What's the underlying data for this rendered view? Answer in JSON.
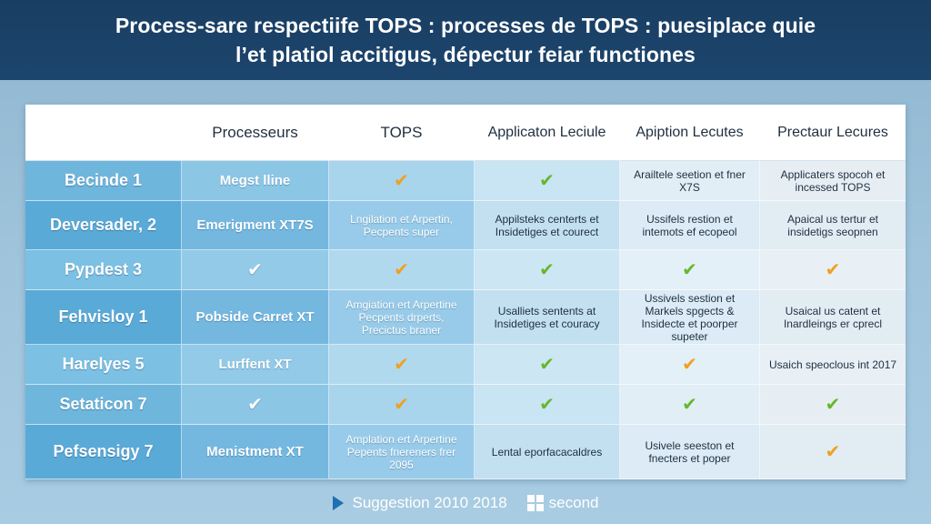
{
  "title": {
    "line1": "Process-sare respectiife TOPS : processes de TOPS : puesiplace quie",
    "line2": "l’et platiol accitigus, dépectur feiar functiones"
  },
  "colors": {
    "banner": "#1c456d",
    "check_orange": "#f0a020",
    "check_green": "#66b82c",
    "label_blue": "#6cb5dc"
  },
  "table": {
    "headers": [
      "",
      "Processeurs",
      "TOPS",
      "Applicaton Leciule",
      "Apiption Lecutes",
      "Prectaur Lecures"
    ],
    "rows": [
      {
        "label": "Becinde 1",
        "cells": [
          {
            "type": "bold",
            "text": "Megst lline"
          },
          {
            "type": "check",
            "color": "orange"
          },
          {
            "type": "check",
            "color": "green"
          },
          {
            "type": "text",
            "text": "Arailtele seetion et fner X7S"
          },
          {
            "type": "text",
            "text": "Applicaters spocoh et incessed TOPS"
          }
        ]
      },
      {
        "label": "Deversader, 2",
        "cells": [
          {
            "type": "bold",
            "text": "Emerigment XT7S"
          },
          {
            "type": "text",
            "text": "Lngilation et Arpertin, Pecpents super"
          },
          {
            "type": "text",
            "text": "Appilsteks centerts et Insidetiges et courect"
          },
          {
            "type": "text",
            "text": "Ussifels restion et intemots ef ecopeol"
          },
          {
            "type": "text",
            "text": "Apaical us tertur et insidetigs seopnen"
          }
        ]
      },
      {
        "label": "Pypdest 3",
        "cells": [
          {
            "type": "check",
            "color": "white"
          },
          {
            "type": "check",
            "color": "orange"
          },
          {
            "type": "check",
            "color": "green"
          },
          {
            "type": "check",
            "color": "green"
          },
          {
            "type": "check",
            "color": "orange"
          }
        ]
      },
      {
        "label": "Fehvisloy 1",
        "cells": [
          {
            "type": "bold",
            "text": "Pobside Carret XT"
          },
          {
            "type": "text",
            "text": "Amgiation ert Arpertine Pecpents drperts, Precictus braner"
          },
          {
            "type": "text",
            "text": "Usalliets sentents at Insidetiges et couracy"
          },
          {
            "type": "text",
            "text": "Ussivels sestion et Markels spgects & Insidecte et poorper supeter"
          },
          {
            "type": "text",
            "text": "Usaical us catent et Inardleings er cprecl"
          }
        ]
      },
      {
        "label": "Harelyes 5",
        "cells": [
          {
            "type": "bold",
            "text": "Lurffent XT"
          },
          {
            "type": "check",
            "color": "orange"
          },
          {
            "type": "check",
            "color": "green"
          },
          {
            "type": "check",
            "color": "orange"
          },
          {
            "type": "text",
            "text": "Usaich speoclous int 2017"
          }
        ]
      },
      {
        "label": "Setaticon 7",
        "cells": [
          {
            "type": "check",
            "color": "white"
          },
          {
            "type": "check",
            "color": "orange"
          },
          {
            "type": "check",
            "color": "green"
          },
          {
            "type": "check",
            "color": "green"
          },
          {
            "type": "check",
            "color": "green"
          }
        ]
      },
      {
        "label": "Pefsensigy 7",
        "cells": [
          {
            "type": "bold",
            "text": "Menistment XT"
          },
          {
            "type": "text",
            "text": "Amplation ert Arpertine Pepents fnereners frer 2095"
          },
          {
            "type": "text",
            "text": "Lental eporfacacaldres"
          },
          {
            "type": "text",
            "text": "Usivele seeston et fnecters et poper"
          },
          {
            "type": "check",
            "color": "orange"
          }
        ]
      }
    ]
  },
  "footer": {
    "left_icon": "play-logo-icon",
    "left_text": "Suggestion 2010 2018",
    "right_icon": "windows-logo-icon",
    "right_text": "second"
  }
}
